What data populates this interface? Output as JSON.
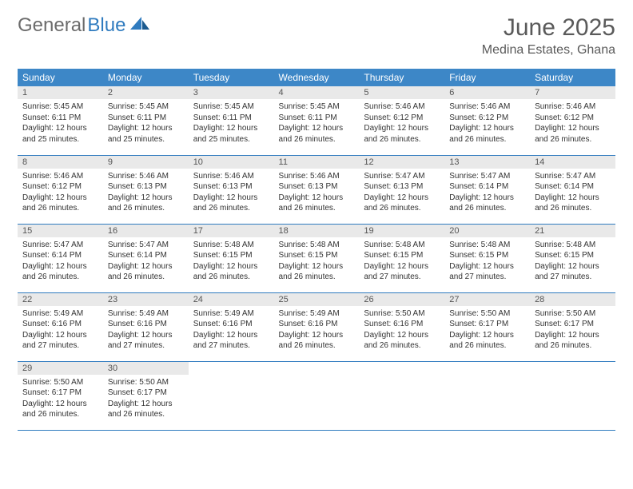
{
  "logo": {
    "word1": "General",
    "word2": "Blue"
  },
  "title": "June 2025",
  "location": "Medina Estates, Ghana",
  "colors": {
    "header_bg": "#3d87c7",
    "header_fg": "#ffffff",
    "daynum_bg": "#e9e9e9",
    "rule": "#2f7bbf",
    "logo_gray": "#6b6b6b",
    "logo_blue": "#2f7bbf",
    "text": "#333333"
  },
  "dayHeaders": [
    "Sunday",
    "Monday",
    "Tuesday",
    "Wednesday",
    "Thursday",
    "Friday",
    "Saturday"
  ],
  "weeks": [
    [
      {
        "n": "1",
        "sr": "5:45 AM",
        "ss": "6:11 PM",
        "dl": "12 hours and 25 minutes."
      },
      {
        "n": "2",
        "sr": "5:45 AM",
        "ss": "6:11 PM",
        "dl": "12 hours and 25 minutes."
      },
      {
        "n": "3",
        "sr": "5:45 AM",
        "ss": "6:11 PM",
        "dl": "12 hours and 25 minutes."
      },
      {
        "n": "4",
        "sr": "5:45 AM",
        "ss": "6:11 PM",
        "dl": "12 hours and 26 minutes."
      },
      {
        "n": "5",
        "sr": "5:46 AM",
        "ss": "6:12 PM",
        "dl": "12 hours and 26 minutes."
      },
      {
        "n": "6",
        "sr": "5:46 AM",
        "ss": "6:12 PM",
        "dl": "12 hours and 26 minutes."
      },
      {
        "n": "7",
        "sr": "5:46 AM",
        "ss": "6:12 PM",
        "dl": "12 hours and 26 minutes."
      }
    ],
    [
      {
        "n": "8",
        "sr": "5:46 AM",
        "ss": "6:12 PM",
        "dl": "12 hours and 26 minutes."
      },
      {
        "n": "9",
        "sr": "5:46 AM",
        "ss": "6:13 PM",
        "dl": "12 hours and 26 minutes."
      },
      {
        "n": "10",
        "sr": "5:46 AM",
        "ss": "6:13 PM",
        "dl": "12 hours and 26 minutes."
      },
      {
        "n": "11",
        "sr": "5:46 AM",
        "ss": "6:13 PM",
        "dl": "12 hours and 26 minutes."
      },
      {
        "n": "12",
        "sr": "5:47 AM",
        "ss": "6:13 PM",
        "dl": "12 hours and 26 minutes."
      },
      {
        "n": "13",
        "sr": "5:47 AM",
        "ss": "6:14 PM",
        "dl": "12 hours and 26 minutes."
      },
      {
        "n": "14",
        "sr": "5:47 AM",
        "ss": "6:14 PM",
        "dl": "12 hours and 26 minutes."
      }
    ],
    [
      {
        "n": "15",
        "sr": "5:47 AM",
        "ss": "6:14 PM",
        "dl": "12 hours and 26 minutes."
      },
      {
        "n": "16",
        "sr": "5:47 AM",
        "ss": "6:14 PM",
        "dl": "12 hours and 26 minutes."
      },
      {
        "n": "17",
        "sr": "5:48 AM",
        "ss": "6:15 PM",
        "dl": "12 hours and 26 minutes."
      },
      {
        "n": "18",
        "sr": "5:48 AM",
        "ss": "6:15 PM",
        "dl": "12 hours and 26 minutes."
      },
      {
        "n": "19",
        "sr": "5:48 AM",
        "ss": "6:15 PM",
        "dl": "12 hours and 27 minutes."
      },
      {
        "n": "20",
        "sr": "5:48 AM",
        "ss": "6:15 PM",
        "dl": "12 hours and 27 minutes."
      },
      {
        "n": "21",
        "sr": "5:48 AM",
        "ss": "6:15 PM",
        "dl": "12 hours and 27 minutes."
      }
    ],
    [
      {
        "n": "22",
        "sr": "5:49 AM",
        "ss": "6:16 PM",
        "dl": "12 hours and 27 minutes."
      },
      {
        "n": "23",
        "sr": "5:49 AM",
        "ss": "6:16 PM",
        "dl": "12 hours and 27 minutes."
      },
      {
        "n": "24",
        "sr": "5:49 AM",
        "ss": "6:16 PM",
        "dl": "12 hours and 27 minutes."
      },
      {
        "n": "25",
        "sr": "5:49 AM",
        "ss": "6:16 PM",
        "dl": "12 hours and 26 minutes."
      },
      {
        "n": "26",
        "sr": "5:50 AM",
        "ss": "6:16 PM",
        "dl": "12 hours and 26 minutes."
      },
      {
        "n": "27",
        "sr": "5:50 AM",
        "ss": "6:17 PM",
        "dl": "12 hours and 26 minutes."
      },
      {
        "n": "28",
        "sr": "5:50 AM",
        "ss": "6:17 PM",
        "dl": "12 hours and 26 minutes."
      }
    ],
    [
      {
        "n": "29",
        "sr": "5:50 AM",
        "ss": "6:17 PM",
        "dl": "12 hours and 26 minutes."
      },
      {
        "n": "30",
        "sr": "5:50 AM",
        "ss": "6:17 PM",
        "dl": "12 hours and 26 minutes."
      },
      null,
      null,
      null,
      null,
      null
    ]
  ],
  "labels": {
    "sunrise": "Sunrise: ",
    "sunset": "Sunset: ",
    "daylight": "Daylight: "
  }
}
